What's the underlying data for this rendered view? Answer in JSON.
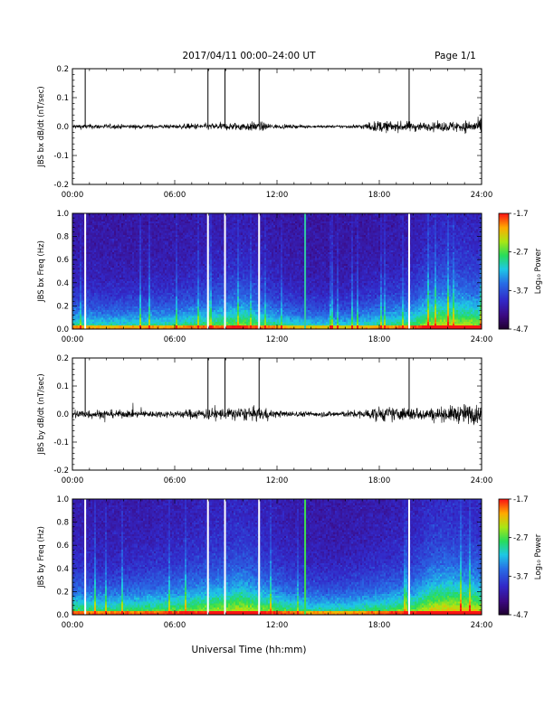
{
  "header": {
    "title": "2017/04/11   00:00–24:00 UT",
    "page": "Page 1/1"
  },
  "footer": {
    "xlabel": "Universal Time (hh:mm)"
  },
  "colors": {
    "trace": "#000000",
    "gap": "#ffffff",
    "spike": "#31c9a2",
    "spike2": "#3ee04c"
  },
  "chart_data": [
    {
      "type": "line",
      "ylabel": "JBS bx dB/dt (nT/sec)",
      "xlim": [
        0,
        24
      ],
      "ylim": [
        -0.2,
        0.2
      ],
      "yticks": [
        "0.2",
        "0.1",
        "0.0",
        "-0.1",
        "-0.2"
      ],
      "yticks_values": [
        0.2,
        0.1,
        0.0,
        -0.1,
        -0.2
      ],
      "xticks": [
        "00:00",
        "06:00",
        "12:00",
        "18:00",
        "24:00"
      ],
      "data_gaps_hours": [
        0.75,
        7.95,
        8.95,
        10.95,
        19.75
      ],
      "series": [
        {
          "x": [
            0,
            2,
            4,
            6,
            7,
            8,
            9,
            10,
            11,
            12,
            14,
            16,
            17,
            18,
            19,
            20,
            21,
            22,
            23,
            24
          ],
          "y_envelope": [
            0.015,
            0.014,
            0.012,
            0.012,
            0.018,
            0.02,
            0.022,
            0.025,
            0.028,
            0.012,
            0.008,
            0.008,
            0.015,
            0.035,
            0.028,
            0.03,
            0.022,
            0.03,
            0.035,
            0.04
          ]
        }
      ]
    },
    {
      "type": "heatmap",
      "ylabel": "JBS bx Freq (Hz)",
      "xlim": [
        0,
        24
      ],
      "ylim": [
        0.0,
        1.0
      ],
      "yticks": [
        "1.0",
        "0.8",
        "0.6",
        "0.4",
        "0.2",
        "0.0"
      ],
      "yticks_values": [
        1.0,
        0.8,
        0.6,
        0.4,
        0.2,
        0.0
      ],
      "xticks": [
        "00:00",
        "06:00",
        "12:00",
        "18:00",
        "24:00"
      ],
      "colorbar": {
        "label": "Log₁₀ Power",
        "min": -4.7,
        "max": -1.7,
        "ticks": [
          "-1.7",
          "-2.7",
          "-3.7",
          "-4.7"
        ]
      },
      "activity_hours": [
        0,
        2,
        4,
        6,
        8,
        10,
        12,
        14,
        16,
        18,
        20,
        21,
        22,
        23,
        24
      ],
      "activity_level": [
        0.45,
        0.4,
        0.42,
        0.45,
        0.55,
        0.65,
        0.45,
        0.35,
        0.35,
        0.45,
        0.55,
        0.75,
        0.8,
        0.75,
        0.7
      ],
      "data_gaps_hours": [
        0.75,
        7.95,
        8.95,
        10.95,
        19.75
      ],
      "spike_hours": [
        13.65
      ]
    },
    {
      "type": "line",
      "ylabel": "JBS by dB/dt (nT/sec)",
      "xlim": [
        0,
        24
      ],
      "ylim": [
        -0.2,
        0.2
      ],
      "yticks": [
        "0.2",
        "0.1",
        "0.0",
        "-0.1",
        "-0.2"
      ],
      "yticks_values": [
        0.2,
        0.1,
        0.0,
        -0.1,
        -0.2
      ],
      "xticks": [
        "00:00",
        "06:00",
        "12:00",
        "18:00",
        "24:00"
      ],
      "data_gaps_hours": [
        0.75,
        7.95,
        8.95,
        10.95,
        19.75
      ],
      "series": [
        {
          "x": [
            0,
            2,
            4,
            6,
            7,
            8,
            9,
            10,
            11,
            12,
            14,
            16,
            17,
            18,
            19,
            20,
            21,
            22,
            23,
            24
          ],
          "y_envelope": [
            0.03,
            0.025,
            0.02,
            0.02,
            0.03,
            0.035,
            0.035,
            0.04,
            0.04,
            0.02,
            0.015,
            0.02,
            0.025,
            0.045,
            0.04,
            0.04,
            0.035,
            0.045,
            0.06,
            0.055
          ]
        }
      ]
    },
    {
      "type": "heatmap",
      "ylabel": "JBS by Freq (Hz)",
      "xlim": [
        0,
        24
      ],
      "ylim": [
        0.0,
        1.0
      ],
      "yticks": [
        "1.0",
        "0.8",
        "0.6",
        "0.4",
        "0.2",
        "0.0"
      ],
      "yticks_values": [
        1.0,
        0.8,
        0.6,
        0.4,
        0.2,
        0.0
      ],
      "xticks": [
        "00:00",
        "06:00",
        "12:00",
        "18:00",
        "24:00"
      ],
      "colorbar": {
        "label": "Log₁₀ Power",
        "min": -4.7,
        "max": -1.7,
        "ticks": [
          "-1.7",
          "-2.7",
          "-3.7",
          "-4.7"
        ]
      },
      "activity_hours": [
        0,
        2,
        4,
        6,
        8,
        10,
        12,
        14,
        16,
        18,
        20,
        21,
        22,
        23,
        24
      ],
      "activity_level": [
        0.55,
        0.5,
        0.55,
        0.6,
        0.7,
        0.8,
        0.6,
        0.45,
        0.45,
        0.55,
        0.65,
        0.85,
        0.9,
        0.85,
        0.8
      ],
      "data_gaps_hours": [
        0.75,
        7.95,
        8.95,
        10.95,
        19.75
      ],
      "spike_hours": [
        13.65
      ]
    }
  ]
}
